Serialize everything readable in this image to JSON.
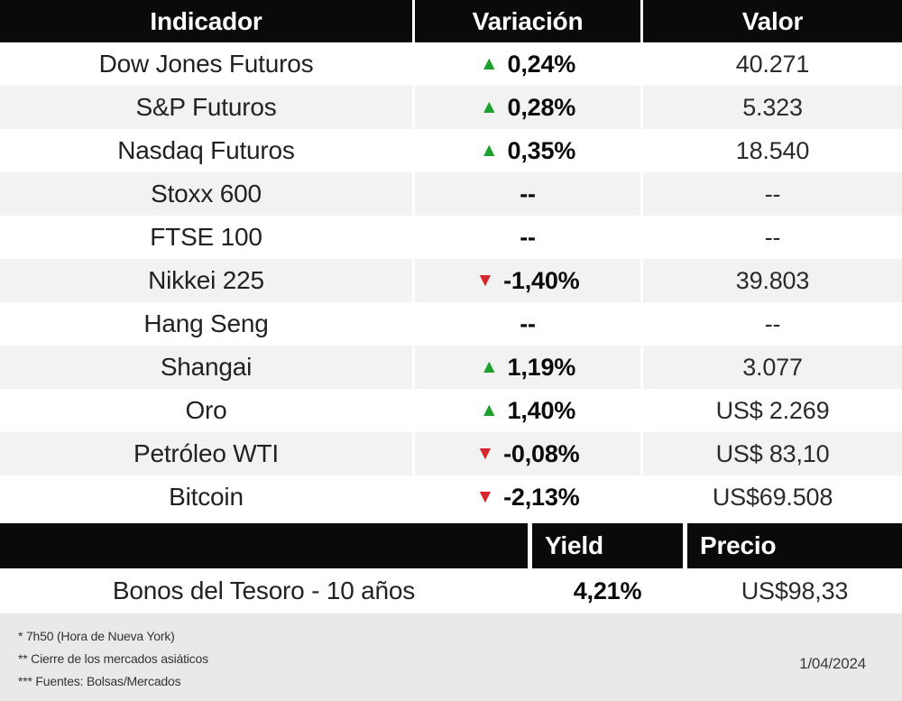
{
  "colors": {
    "up_green": "#1aa12e",
    "down_red": "#d5282c",
    "header_bg": "#0a0a0a",
    "row_alt_bg": "#f2f2f2",
    "footer_bg": "#e9e9e9"
  },
  "icons": {
    "up": "▲",
    "down": "▼"
  },
  "chart_data": [
    {
      "type": "table",
      "columns": [
        "Indicador",
        "Variación",
        "Valor"
      ],
      "rows": [
        {
          "indicator": "Dow Jones Futuros",
          "direction": "up",
          "variation": "0,24%",
          "value": "40.271"
        },
        {
          "indicator": "S&P Futuros",
          "direction": "up",
          "variation": "0,28%",
          "value": "5.323"
        },
        {
          "indicator": "Nasdaq Futuros",
          "direction": "up",
          "variation": "0,35%",
          "value": "18.540"
        },
        {
          "indicator": "Stoxx 600",
          "direction": "none",
          "variation": "--",
          "value": "--"
        },
        {
          "indicator": "FTSE 100",
          "direction": "none",
          "variation": "--",
          "value": "--"
        },
        {
          "indicator": "Nikkei 225",
          "direction": "down",
          "variation": "-1,40%",
          "value": "39.803"
        },
        {
          "indicator": "Hang Seng",
          "direction": "none",
          "variation": "--",
          "value": "--"
        },
        {
          "indicator": "Shangai",
          "direction": "up",
          "variation": "1,19%",
          "value": "3.077"
        },
        {
          "indicator": "Oro",
          "direction": "up",
          "variation": "1,40%",
          "value": "US$ 2.269"
        },
        {
          "indicator": "Petróleo WTI",
          "direction": "down",
          "variation": "-0,08%",
          "value": "US$ 83,10"
        },
        {
          "indicator": "Bitcoin",
          "direction": "down",
          "variation": "-2,13%",
          "value": "US$69.508"
        }
      ]
    },
    {
      "type": "table",
      "columns": [
        "",
        "Yield",
        "Precio"
      ],
      "rows": [
        {
          "indicator": "Bonos del Tesoro - 10 años",
          "yield": "4,21%",
          "price": "US$98,33"
        }
      ]
    }
  ],
  "footer": {
    "notes": [
      "* 7h50 (Hora de Nueva York)",
      "** Cierre de los mercados asiáticos",
      "*** Fuentes: Bolsas/Mercados"
    ],
    "date": "1/04/2024"
  }
}
